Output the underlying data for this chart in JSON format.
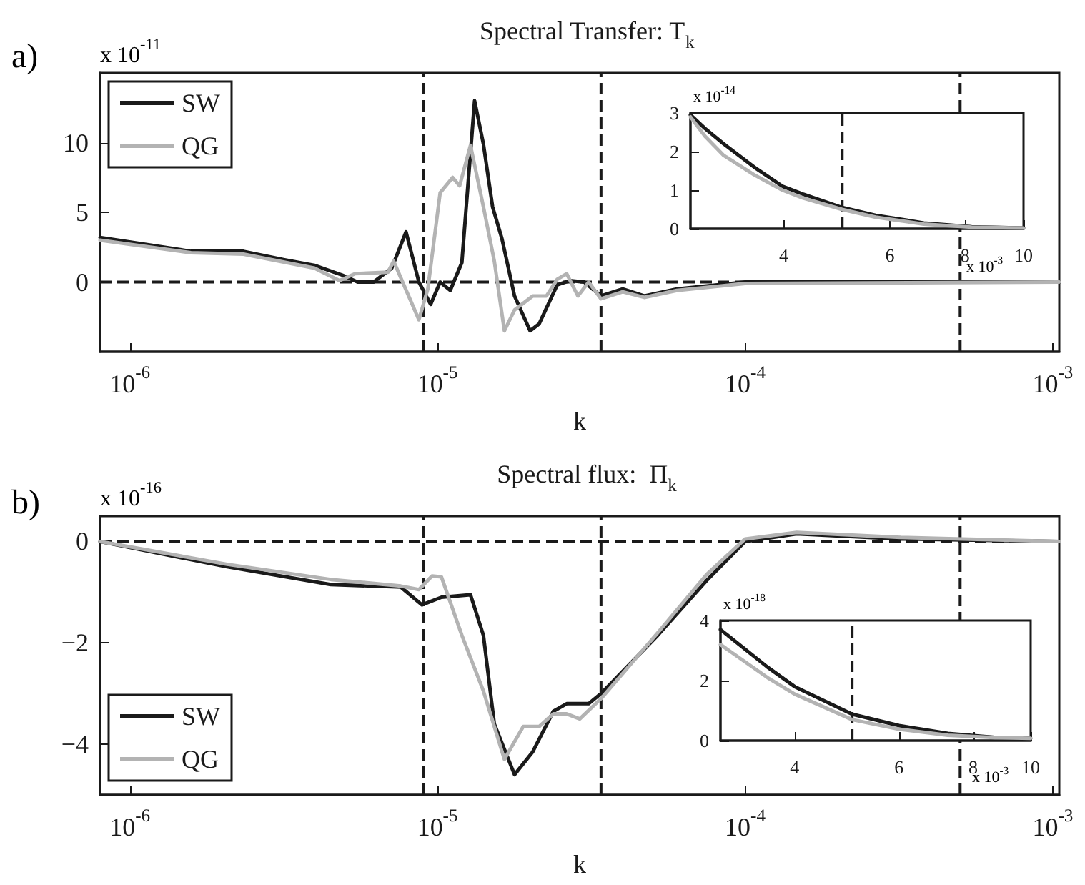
{
  "chart_data": [
    {
      "type": "line",
      "title": "Spectral Transfer: T$_{k}$",
      "xlabel": "k",
      "annotations": [
        "a)",
        "x 10$^{-11}$"
      ],
      "log": "x",
      "xlim": [
        8e-07,
        0.00105
      ],
      "xticks": [
        {
          "value": 1e-06,
          "label": "10$^{-6}$"
        },
        {
          "value": 1e-05,
          "label": "10$^{-5}$"
        },
        {
          "value": 0.0001,
          "label": "10$^{-4}$"
        },
        {
          "value": 0.001,
          "label": "10$^{-3}$"
        }
      ],
      "ylim": [
        -5,
        15
      ],
      "yticks": [
        0,
        5,
        10
      ],
      "grid": false,
      "legend": "top left",
      "marker": "none",
      "line_style": "solid",
      "ref_lines": [
        {
          "axis": "y",
          "value": 0,
          "color": "#1a1a1a",
          "line_style": "dashed"
        },
        {
          "axis": "x",
          "value": 9e-06,
          "color": "#1a1a1a",
          "line_style": "dashed"
        },
        {
          "axis": "x",
          "value": 3.4e-05,
          "color": "#1a1a1a",
          "line_style": "dashed"
        },
        {
          "axis": "x",
          "value": 0.0005,
          "color": "#1a1a1a",
          "line_style": "dashed"
        }
      ],
      "series": [
        {
          "name": "SW",
          "color": "#1a1a1a",
          "x": [
            8e-07,
            1.58e-06,
            2.34e-06,
            3.16e-06,
            3.98e-06,
            4.9e-06,
            5.5e-06,
            6.2e-06,
            7.1e-06,
            7.9e-06,
            8.7e-06,
            9.5e-06,
            1.02e-05,
            1.1e-05,
            1.2e-05,
            1.32e-05,
            1.41e-05,
            1.51e-05,
            1.62e-05,
            1.78e-05,
            2e-05,
            2.14e-05,
            2.45e-05,
            2.69e-05,
            3e-05,
            3.4e-05,
            4e-05,
            4.7e-05,
            6e-05,
            0.0001,
            0.00105
          ],
          "values": [
            3.2,
            2.2,
            2.2,
            1.6,
            1.2,
            0.5,
            0,
            0,
            1.0,
            3.6,
            0,
            -1.6,
            0,
            -0.6,
            1.4,
            13.0,
            9.9,
            5.4,
            3.1,
            -1.0,
            -3.5,
            -3.0,
            -0.2,
            0.1,
            0,
            -1.0,
            -0.5,
            -1.0,
            -0.5,
            0,
            0
          ]
        },
        {
          "name": "QG",
          "color": "#b3b3b3",
          "x": [
            8e-07,
            1.58e-06,
            2.34e-06,
            3.98e-06,
            4.8e-06,
            5.4e-06,
            6.9e-06,
            7.2e-06,
            8.7e-06,
            9.3e-06,
            1.02e-05,
            1.12e-05,
            1.18e-05,
            1.28e-05,
            1.41e-05,
            1.53e-05,
            1.65e-05,
            1.78e-05,
            2.04e-05,
            2.26e-05,
            2.45e-05,
            2.63e-05,
            2.86e-05,
            3.1e-05,
            3.4e-05,
            4e-05,
            4.7e-05,
            6e-05,
            0.0001,
            0.00105
          ],
          "values": [
            3.0,
            2.1,
            2.0,
            1.0,
            0.1,
            0.6,
            0.7,
            1.5,
            -2.7,
            -0.5,
            6.4,
            7.5,
            6.9,
            9.8,
            5.4,
            1.5,
            -3.5,
            -2.0,
            -1.0,
            -1.0,
            0.2,
            0.6,
            -1.0,
            0,
            -1.2,
            -0.7,
            -1.1,
            -0.6,
            -0.1,
            0
          ]
        }
      ]
    },
    {
      "type": "line",
      "annotations": [
        "x 10$^{-14}$",
        "x 10$^{-3}$"
      ],
      "log": "x",
      "xlim": [
        2.8,
        10
      ],
      "xticks": [
        4,
        6,
        8,
        10
      ],
      "ylim": [
        0,
        3
      ],
      "yticks": [
        0,
        1,
        2,
        3
      ],
      "grid": false,
      "legend": false,
      "marker": "none",
      "line_style": "solid",
      "ref_lines": [
        {
          "axis": "x",
          "value": 5,
          "color": "#1a1a1a",
          "line_style": "dashed"
        }
      ],
      "series": [
        {
          "color": "#1a1a1a",
          "x": [
            2.8,
            2.96,
            3.18,
            3.57,
            3.98,
            4.3,
            5,
            5.68,
            6.83,
            8.2,
            10
          ],
          "values": [
            2.95,
            2.6,
            2.2,
            1.6,
            1.1,
            0.9,
            0.55,
            0.35,
            0.15,
            0.05,
            0.02
          ]
        },
        {
          "color": "#b3b3b3",
          "x": [
            2.8,
            2.96,
            3.18,
            3.57,
            3.98,
            4.3,
            5,
            5.68,
            6.83,
            8.2,
            10
          ],
          "values": [
            2.9,
            2.4,
            1.9,
            1.4,
            1.0,
            0.8,
            0.5,
            0.3,
            0.12,
            0.04,
            0.02
          ]
        }
      ]
    },
    {
      "type": "line",
      "title": "Spectral flux:  Π$_{k}$",
      "xlabel": "k",
      "annotations": [
        "b)",
        "x 10$^{-16}$"
      ],
      "log": "x",
      "xlim": [
        8e-07,
        0.00105
      ],
      "xticks": [
        {
          "value": 1e-06,
          "label": "10$^{-6}$"
        },
        {
          "value": 1e-05,
          "label": "10$^{-5}$"
        },
        {
          "value": 0.0001,
          "label": "10$^{-4}$"
        },
        {
          "value": 0.001,
          "label": "10$^{-3}$"
        }
      ],
      "ylim": [
        -5,
        0.5
      ],
      "yticks": [
        {
          "value": -4,
          "label": "−4"
        },
        {
          "value": -2,
          "label": "−2"
        },
        0
      ],
      "grid": false,
      "legend": "bottom left",
      "marker": "none",
      "line_style": "solid",
      "ref_lines": [
        {
          "axis": "y",
          "value": 0,
          "color": "#1a1a1a",
          "line_style": "dashed"
        },
        {
          "axis": "x",
          "value": 9e-06,
          "color": "#1a1a1a",
          "line_style": "dashed"
        },
        {
          "axis": "x",
          "value": 3.4e-05,
          "color": "#1a1a1a",
          "line_style": "dashed"
        },
        {
          "axis": "x",
          "value": 0.0005,
          "color": "#1a1a1a",
          "line_style": "dashed"
        }
      ],
      "series": [
        {
          "name": "SW",
          "color": "#1a1a1a",
          "x": [
            8e-07,
            2.07e-06,
            4.5e-06,
            7.6e-06,
            8.9e-06,
            1.03e-05,
            1.28e-05,
            1.41e-05,
            1.53e-05,
            1.78e-05,
            2.04e-05,
            2.38e-05,
            2.63e-05,
            3.1e-05,
            3.4e-05,
            5.2e-05,
            7.5e-05,
            0.0001,
            0.000147,
            0.00032,
            0.00105
          ],
          "values": [
            0,
            -0.5,
            -0.85,
            -0.9,
            -1.25,
            -1.1,
            -1.05,
            -1.85,
            -3.6,
            -4.6,
            -4.15,
            -3.35,
            -3.2,
            -3.2,
            -3.0,
            -1.85,
            -0.77,
            0,
            0.15,
            0.05,
            0
          ]
        },
        {
          "name": "QG",
          "color": "#b3b3b3",
          "x": [
            8e-07,
            2.07e-06,
            4.5e-06,
            7.6e-06,
            8.7e-06,
            9.6e-06,
            1.03e-05,
            1.2e-05,
            1.41e-05,
            1.65e-05,
            1.9e-05,
            2.14e-05,
            2.38e-05,
            2.63e-05,
            2.9e-05,
            3.4e-05,
            5.2e-05,
            7.5e-05,
            0.0001,
            0.000147,
            0.00032,
            0.00105
          ],
          "values": [
            0,
            -0.45,
            -0.75,
            -0.88,
            -0.95,
            -0.68,
            -0.7,
            -1.85,
            -2.95,
            -4.3,
            -3.65,
            -3.65,
            -3.4,
            -3.4,
            -3.5,
            -3.1,
            -1.8,
            -0.65,
            0.05,
            0.18,
            0.08,
            0
          ]
        }
      ]
    },
    {
      "type": "line",
      "annotations": [
        "x 10$^{-18}$",
        "x 10$^{-3}$"
      ],
      "log": "x",
      "xlim": [
        3,
        10
      ],
      "xticks": [
        4,
        6,
        8,
        10
      ],
      "ylim": [
        0,
        4
      ],
      "yticks": [
        0,
        2,
        4
      ],
      "grid": false,
      "legend": false,
      "marker": "none",
      "line_style": "solid",
      "ref_lines": [
        {
          "axis": "x",
          "value": 5,
          "color": "#1a1a1a",
          "line_style": "dashed"
        }
      ],
      "series": [
        {
          "color": "#1a1a1a",
          "x": [
            3,
            3.6,
            4,
            5,
            6,
            7.25,
            8.7,
            10
          ],
          "values": [
            3.7,
            2.45,
            1.8,
            0.88,
            0.5,
            0.24,
            0.11,
            0.08
          ]
        },
        {
          "color": "#b3b3b3",
          "x": [
            3,
            3.6,
            4,
            5,
            6,
            7.25,
            8.7,
            10
          ],
          "values": [
            3.2,
            2.1,
            1.55,
            0.7,
            0.38,
            0.18,
            0.1,
            0.08
          ]
        }
      ]
    }
  ]
}
